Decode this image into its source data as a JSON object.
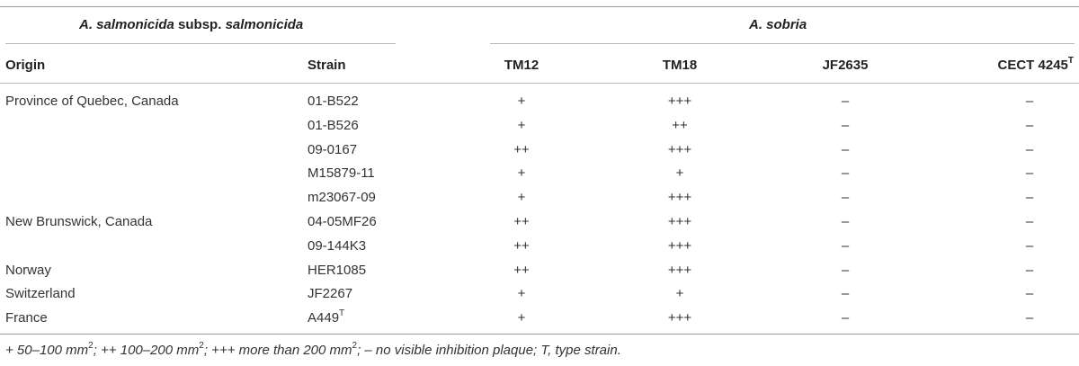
{
  "group_headers": {
    "salmonicida": {
      "italic": "A. salmonicida",
      "plain": " subsp. ",
      "italic2": "salmonicida"
    },
    "sobria": "A. sobria"
  },
  "columns": {
    "origin": "Origin",
    "strain": "Strain",
    "tm12": "TM12",
    "tm18": "TM18",
    "jf2635": "JF2635",
    "cect": "CECT 4245",
    "cect_sup": "T"
  },
  "rows": [
    {
      "origin": "Province of Quebec, Canada",
      "strain": "01-B522",
      "strain_sup": "",
      "tm12": "+",
      "tm18": "+++",
      "jf2635": "–",
      "cect": "–"
    },
    {
      "origin": "",
      "strain": "01-B526",
      "strain_sup": "",
      "tm12": "+",
      "tm18": "++",
      "jf2635": "–",
      "cect": "–"
    },
    {
      "origin": "",
      "strain": "09-0167",
      "strain_sup": "",
      "tm12": "++",
      "tm18": "+++",
      "jf2635": "–",
      "cect": "–"
    },
    {
      "origin": "",
      "strain": "M15879-11",
      "strain_sup": "",
      "tm12": "+",
      "tm18": "+",
      "jf2635": "–",
      "cect": "–"
    },
    {
      "origin": "",
      "strain": "m23067-09",
      "strain_sup": "",
      "tm12": "+",
      "tm18": "+++",
      "jf2635": "–",
      "cect": "–"
    },
    {
      "origin": "New Brunswick, Canada",
      "strain": "04-05MF26",
      "strain_sup": "",
      "tm12": "++",
      "tm18": "+++",
      "jf2635": "–",
      "cect": "–"
    },
    {
      "origin": "",
      "strain": "09-144K3",
      "strain_sup": "",
      "tm12": "++",
      "tm18": "+++",
      "jf2635": "–",
      "cect": "–"
    },
    {
      "origin": "Norway",
      "strain": "HER1085",
      "strain_sup": "",
      "tm12": "++",
      "tm18": "+++",
      "jf2635": "–",
      "cect": "–"
    },
    {
      "origin": "Switzerland",
      "strain": "JF2267",
      "strain_sup": "",
      "tm12": "+",
      "tm18": "+",
      "jf2635": "–",
      "cect": "–"
    },
    {
      "origin": "France",
      "strain": "A449",
      "strain_sup": "T",
      "tm12": "+",
      "tm18": "+++",
      "jf2635": "–",
      "cect": "–"
    }
  ],
  "footnote": {
    "p1": "+ 50–100 mm",
    "s1": "2",
    "p2": "; ++ 100–200 mm",
    "s2": "2",
    "p3": "; +++ more than 200 mm",
    "s3": "2",
    "p4": "; – no visible inhibition plaque; T, type strain."
  }
}
